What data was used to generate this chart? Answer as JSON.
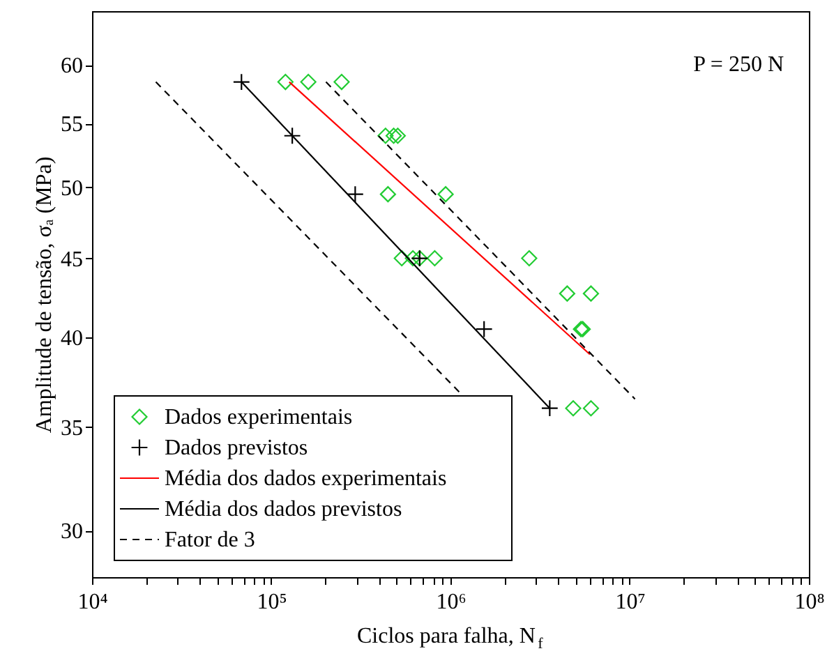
{
  "chart_data": {
    "type": "scatter",
    "xlabel": "Ciclos para falha, N$_{f}$",
    "ylabel": "Amplitude de tensão, σₐ (MPa)",
    "annotations": [
      "P = 250 N"
    ],
    "log": "xy",
    "xlim": [
      10000,
      100000000
    ],
    "xticks": [
      {
        "value": 10000,
        "label": "10⁴"
      },
      {
        "value": 20000,
        "label": null
      },
      {
        "value": 30000,
        "label": null
      },
      {
        "value": 40000,
        "label": null
      },
      {
        "value": 50000,
        "label": null
      },
      {
        "value": 60000,
        "label": null
      },
      {
        "value": 70000,
        "label": null
      },
      {
        "value": 80000,
        "label": null
      },
      {
        "value": 90000,
        "label": null
      },
      {
        "value": 100000,
        "label": "10⁵"
      },
      {
        "value": 200000,
        "label": null
      },
      {
        "value": 300000,
        "label": null
      },
      {
        "value": 400000,
        "label": null
      },
      {
        "value": 500000,
        "label": null
      },
      {
        "value": 600000,
        "label": null
      },
      {
        "value": 700000,
        "label": null
      },
      {
        "value": 800000,
        "label": null
      },
      {
        "value": 900000,
        "label": null
      },
      {
        "value": 1000000,
        "label": "10⁶"
      },
      {
        "value": 2000000,
        "label": null
      },
      {
        "value": 3000000,
        "label": null
      },
      {
        "value": 4000000,
        "label": null
      },
      {
        "value": 5000000,
        "label": null
      },
      {
        "value": 6000000,
        "label": null
      },
      {
        "value": 7000000,
        "label": null
      },
      {
        "value": 8000000,
        "label": null
      },
      {
        "value": 9000000,
        "label": null
      },
      {
        "value": 10000000,
        "label": "10⁷"
      },
      {
        "value": 20000000,
        "label": null
      },
      {
        "value": 30000000,
        "label": null
      },
      {
        "value": 40000000,
        "label": null
      },
      {
        "value": 50000000,
        "label": null
      },
      {
        "value": 60000000,
        "label": null
      },
      {
        "value": 70000000,
        "label": null
      },
      {
        "value": 80000000,
        "label": null
      },
      {
        "value": 90000000,
        "label": null
      },
      {
        "value": 100000000,
        "label": "10⁸"
      }
    ],
    "ylim": [
      28,
      65
    ],
    "yticks": [
      30,
      35,
      40,
      45,
      50,
      55,
      60
    ],
    "grid": false,
    "legend": "bottom left",
    "series": [
      {
        "name": "Dados experimentais",
        "marker": "diamond",
        "color": "#22cc33",
        "x": [
          120000,
          161000,
          247000,
          434000,
          482000,
          508000,
          448000,
          940000,
          535000,
          617000,
          673000,
          817000,
          2750000,
          4480000,
          6080000,
          5350000,
          5470000,
          4840000,
          6080000
        ],
        "values": [
          58.5,
          58.5,
          58.5,
          54,
          54,
          54,
          49.5,
          49.5,
          45,
          45,
          45,
          45,
          45,
          42.7,
          42.7,
          40.5,
          40.5,
          36,
          36
        ]
      },
      {
        "name": "Dados previstos",
        "marker": "cross",
        "color": "#000000",
        "x": [
          68200,
          131000,
          294000,
          673000,
          1540000,
          3580000
        ],
        "values": [
          58.5,
          54,
          49.5,
          45,
          40.5,
          36
        ]
      },
      {
        "name": "Média dos dados experimentais",
        "type": "line",
        "line_style": "solid",
        "color": "#ff0000",
        "x": [
          126000,
          6000000
        ],
        "values": [
          58.5,
          39
        ]
      },
      {
        "name": "Média dos dados previstos",
        "type": "line",
        "line_style": "solid",
        "color": "#000000",
        "x": [
          68200,
          3580000
        ],
        "values": [
          58.5,
          36
        ]
      },
      {
        "name": "Fator de 3",
        "type": "line",
        "line_style": "dashed",
        "color": "#000000",
        "x": [
          22700,
          1140000,
          null,
          202000,
          10700000
        ],
        "values": [
          58.5,
          36.8,
          null,
          58.5,
          36.5
        ]
      }
    ]
  }
}
